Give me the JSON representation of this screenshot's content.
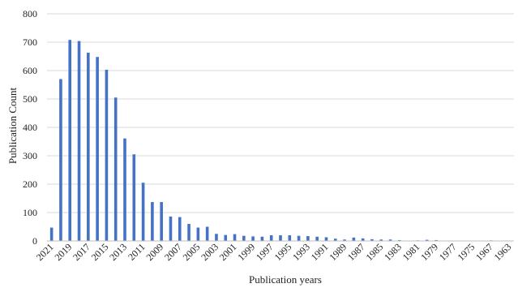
{
  "chart_data": {
    "type": "bar",
    "xlabel": "Publication years",
    "ylabel": "Publication Count",
    "ylim": [
      0,
      800
    ],
    "yticks": [
      0,
      100,
      200,
      300,
      400,
      500,
      600,
      700,
      800
    ],
    "grid": "horizontal",
    "legend": "none",
    "bar_color": "#4472c4",
    "categories": [
      "2021",
      "2020",
      "2019",
      "2018",
      "2017",
      "2016",
      "2015",
      "2014",
      "2013",
      "2012",
      "2011",
      "2010",
      "2009",
      "2008",
      "2007",
      "2006",
      "2005",
      "2004",
      "2003",
      "2002",
      "2001",
      "2000",
      "1999",
      "1998",
      "1997",
      "1996",
      "1995",
      "1994",
      "1993",
      "1992",
      "1991",
      "1990",
      "1989",
      "1988",
      "1987",
      "1986",
      "1985",
      "1984",
      "1983",
      "1982",
      "1981",
      "1980",
      "1979",
      "1978",
      "1977",
      "1976",
      "1975",
      "1974",
      "1967",
      "1966",
      "1963"
    ],
    "tick_labels": [
      "2021",
      "2019",
      "2017",
      "2015",
      "2013",
      "2011",
      "2009",
      "2007",
      "2005",
      "2003",
      "2001",
      "1999",
      "1997",
      "1995",
      "1993",
      "1991",
      "1989",
      "1987",
      "1985",
      "1983",
      "1981",
      "1979",
      "1977",
      "1975",
      "1967",
      "1963"
    ],
    "values": [
      47,
      570,
      708,
      704,
      663,
      648,
      603,
      505,
      361,
      305,
      205,
      137,
      137,
      86,
      84,
      60,
      47,
      50,
      25,
      21,
      24,
      18,
      16,
      15,
      20,
      20,
      20,
      18,
      17,
      15,
      13,
      8,
      5,
      12,
      9,
      6,
      5,
      5,
      3,
      1,
      2,
      4,
      3,
      1,
      1,
      1,
      1,
      1,
      2,
      1,
      1
    ]
  }
}
